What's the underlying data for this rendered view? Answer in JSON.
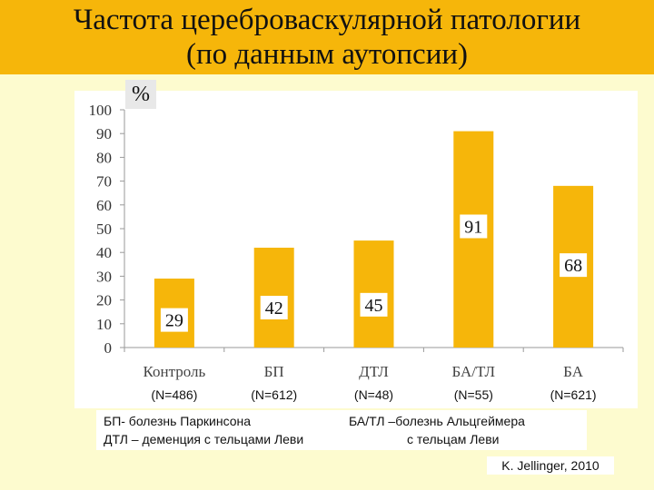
{
  "title_lines": [
    "Частота цереброваскулярной патологии",
    "(по данным аутопсии)"
  ],
  "chart_data": {
    "type": "bar",
    "ylabel": "%",
    "ylim": [
      0,
      100
    ],
    "yticks": [
      "0",
      "10",
      "20",
      "30",
      "40",
      "50",
      "60",
      "70",
      "80",
      "90",
      "100"
    ],
    "categories": [
      "Контроль",
      "БП",
      "ДТЛ",
      "БА/ТЛ",
      "БА"
    ],
    "values": [
      29,
      42,
      45,
      91,
      68
    ],
    "data_labels": [
      "29",
      "42",
      "45",
      "91",
      "68"
    ],
    "n_labels": [
      "(N=486)",
      "(N=612)",
      "(N=48)",
      "(N=55)",
      "(N=621)"
    ],
    "bar_color": "#f6b60a",
    "grid": false
  },
  "notes": {
    "left_1": "БП- болезнь Паркинсона",
    "left_2": "ДТЛ – деменция с тельцами Леви",
    "right_1": "БА/ТЛ –болезнь Альцгеймера",
    "right_2": "с тельцам Леви"
  },
  "source": "K. Jellinger, 2010",
  "colors": {
    "background": "#fdfbcf",
    "header": "#f6b60a",
    "bar": "#f6b60a"
  }
}
